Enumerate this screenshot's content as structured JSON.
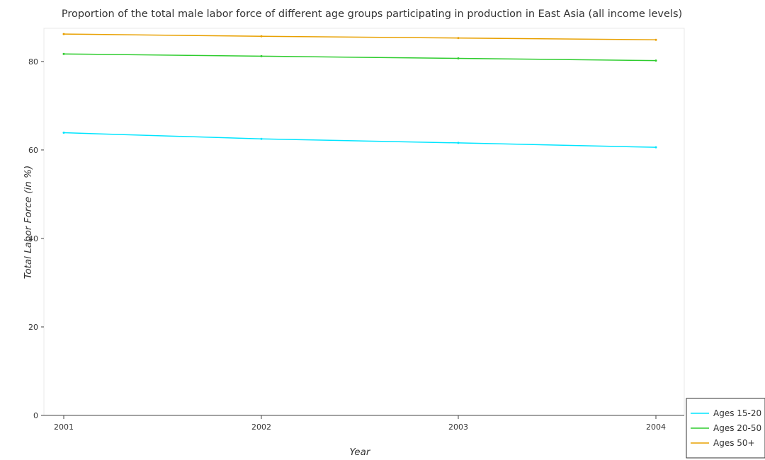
{
  "chart_data": {
    "type": "line",
    "title": "Proportion of the total male labor force of different age groups participating in production in East Asia (all income levels)",
    "xlabel": "Year",
    "ylabel": "Total Labor Force (in %)",
    "categories": [
      "2001",
      "2002",
      "2003",
      "2004"
    ],
    "ylim": [
      0,
      87.5
    ],
    "yticks": [
      0,
      20,
      40,
      60,
      80
    ],
    "grid": false,
    "legend_position": "bottom-right",
    "series": [
      {
        "name": "Ages 15-20",
        "color": "#00e5ff",
        "values": [
          63.9,
          62.5,
          61.6,
          60.6
        ]
      },
      {
        "name": "Ages 20-50",
        "color": "#2ecc2e",
        "values": [
          81.7,
          81.2,
          80.7,
          80.2
        ]
      },
      {
        "name": "Ages 50+",
        "color": "#e8a000",
        "values": [
          86.2,
          85.7,
          85.3,
          84.9
        ]
      }
    ]
  }
}
